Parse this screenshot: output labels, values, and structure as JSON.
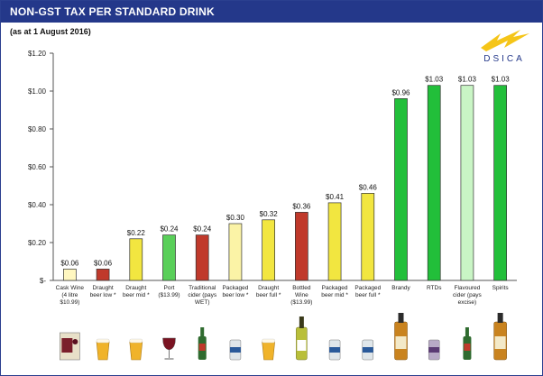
{
  "header": {
    "title": "NON-GST TAX PER STANDARD DRINK",
    "subtitle": "(as at 1 August 2016)"
  },
  "logo": {
    "text": "DSICA",
    "color": "#f5c518"
  },
  "chart_data": {
    "type": "bar",
    "categories": [
      [
        "Cask Wine",
        "(4 litre",
        "$10.99)"
      ],
      [
        "Draught",
        "beer low *"
      ],
      [
        "Draught",
        "beer mid *"
      ],
      [
        "Port",
        "($13.99)"
      ],
      [
        "Traditional",
        "cider (pays",
        "WET)"
      ],
      [
        "Packaged",
        "beer low *"
      ],
      [
        "Draught",
        "beer full *"
      ],
      [
        "Bottled",
        "Wine",
        "($13.99)"
      ],
      [
        "Packaged",
        "beer mid *"
      ],
      [
        "Packaged",
        "beer full *"
      ],
      [
        "Brandy"
      ],
      [
        "RTDs"
      ],
      [
        "Flavoured",
        "cider (pays",
        "excise)"
      ],
      [
        "Spirits"
      ]
    ],
    "values": [
      0.06,
      0.06,
      0.22,
      0.24,
      0.24,
      0.3,
      0.32,
      0.36,
      0.41,
      0.46,
      0.96,
      1.03,
      1.03,
      1.03
    ],
    "value_labels": [
      "$0.06",
      "$0.06",
      "$0.22",
      "$0.24",
      "$0.24",
      "$0.30",
      "$0.32",
      "$0.36",
      "$0.41",
      "$0.46",
      "$0.96",
      "$1.03",
      "$1.03",
      "$1.03"
    ],
    "colors": [
      "#fff7c0",
      "#c0392b",
      "#f2e640",
      "#59cf59",
      "#c0392b",
      "#fbf3a6",
      "#f2e640",
      "#c0392b",
      "#f2e640",
      "#f2e640",
      "#22bf3a",
      "#22bf3a",
      "#c9f5c5",
      "#22bf3a"
    ],
    "yticks": [
      0,
      0.2,
      0.4,
      0.6,
      0.8,
      1.0,
      1.2
    ],
    "ytick_labels": [
      "$-",
      "$0.20",
      "$0.40",
      "$0.60",
      "$0.80",
      "$1.00",
      "$1.20"
    ],
    "ylim": [
      0,
      1.2
    ],
    "grid": false,
    "xlabel": "",
    "ylabel": ""
  },
  "product_icons": [
    "wine-cask-icon",
    "beer-glass-icon",
    "beer-glass-icon",
    "wine-glass-icon",
    "cider-bottle-icon",
    "beer-can-icon",
    "beer-glass-icon",
    "wine-bottle-icon",
    "beer-can-icon",
    "beer-can-icon",
    "brandy-bottle-icon",
    "rtd-can-icon",
    "cider-bottle-icon",
    "spirits-bottle-icon"
  ]
}
